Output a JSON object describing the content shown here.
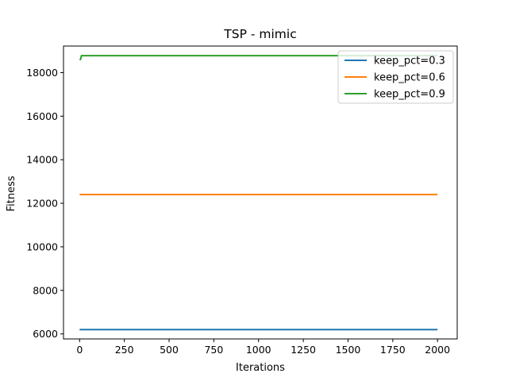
{
  "chart_data": {
    "type": "line",
    "title": "TSP - mimic",
    "xlabel": "Iterations",
    "ylabel": "Fitness",
    "xlim": [
      -90,
      2110
    ],
    "ylim": [
      5770,
      19220
    ],
    "xticks": [
      0,
      250,
      500,
      750,
      1000,
      1250,
      1500,
      1750,
      2000
    ],
    "yticks": [
      6000,
      8000,
      10000,
      12000,
      14000,
      16000,
      18000
    ],
    "grid": false,
    "legend_position": "top-right",
    "series": [
      {
        "name": "keep_pct=0.3",
        "color": "#1f77b4",
        "x": [
          0,
          2000
        ],
        "y": [
          6200,
          6200
        ]
      },
      {
        "name": "keep_pct=0.6",
        "color": "#ff7f0e",
        "x": [
          0,
          2000
        ],
        "y": [
          12400,
          12400
        ]
      },
      {
        "name": "keep_pct=0.9",
        "color": "#2ca02c",
        "x": [
          0,
          5,
          10,
          2000
        ],
        "y": [
          18600,
          18600,
          18780,
          18780
        ]
      }
    ]
  }
}
